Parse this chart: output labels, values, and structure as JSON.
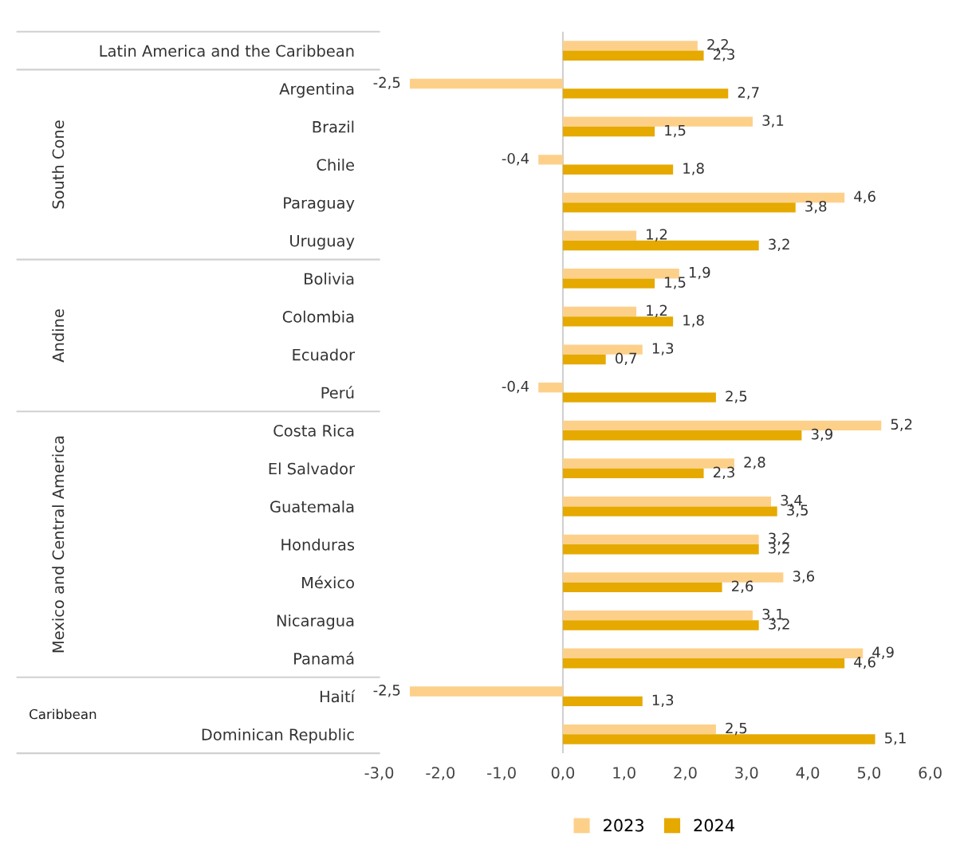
{
  "chart_data": {
    "type": "bar",
    "orientation": "horizontal",
    "categories": [
      "Latin America and the Caribbean",
      "Argentina",
      "Brazil",
      "Chile",
      "Paraguay",
      "Uruguay",
      "Bolivia",
      "Colombia",
      "Ecuador",
      "Perú",
      "Costa Rica",
      "El Salvador",
      "Guatemala",
      "Honduras",
      "México",
      "Nicaragua",
      "Panamá",
      "Haití",
      "Dominican Republic"
    ],
    "series": [
      {
        "name": "2023",
        "color": "#fdd08a",
        "values": [
          2.2,
          -2.5,
          3.1,
          -0.4,
          4.6,
          1.2,
          1.9,
          1.2,
          1.3,
          -0.4,
          5.2,
          2.8,
          3.4,
          3.2,
          3.6,
          3.1,
          4.9,
          -2.5,
          2.5
        ],
        "value_labels": [
          "2,2",
          "-2,5",
          "3,1",
          "-0,4",
          "4,6",
          "1,2",
          "1,9",
          "1,2",
          "1,3",
          "-0,4",
          "5,2",
          "2,8",
          "3,4",
          "3,2",
          "3,6",
          "3,1",
          "4,9",
          "-2,5",
          "2,5"
        ]
      },
      {
        "name": "2024",
        "color": "#e5a900",
        "values": [
          2.3,
          2.7,
          1.5,
          1.8,
          3.8,
          3.2,
          1.5,
          1.8,
          0.7,
          2.5,
          3.9,
          2.3,
          3.5,
          3.2,
          2.6,
          3.2,
          4.6,
          1.3,
          5.1
        ],
        "value_labels": [
          "2,3",
          "2,7",
          "1,5",
          "1,8",
          "3,8",
          "3,2",
          "1,5",
          "1,8",
          "0,7",
          "2,5",
          "3,9",
          "2,3",
          "3,5",
          "3,2",
          "2,6",
          "3,2",
          "4,6",
          "1,3",
          "5,1"
        ]
      }
    ],
    "xlim": [
      -3,
      6
    ],
    "xticks": [
      {
        "value": -3,
        "label": "-3,0"
      },
      {
        "value": -2,
        "label": "-2,0"
      },
      {
        "value": -1,
        "label": "-1,0"
      },
      {
        "value": 0,
        "label": "0,0"
      },
      {
        "value": 1,
        "label": "1,0"
      },
      {
        "value": 2,
        "label": "2,0"
      },
      {
        "value": 3,
        "label": "3,0"
      },
      {
        "value": 4,
        "label": "4,0"
      },
      {
        "value": 5,
        "label": "5,0"
      },
      {
        "value": 6,
        "label": "6,0"
      }
    ],
    "annotations": [
      "South Cone",
      "Andine",
      "Mexico and Central America",
      "Caribbean"
    ],
    "ref_lines": [
      {
        "axis": "x",
        "value": 0,
        "color": "#d0d0d0"
      }
    ],
    "legend": "bottom",
    "grid": false
  }
}
